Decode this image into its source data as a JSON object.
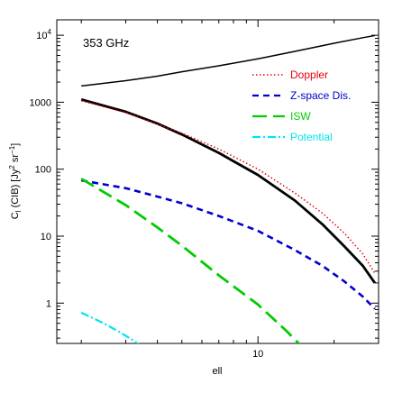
{
  "chart_data": {
    "type": "line",
    "annotation": "353 GHz",
    "xlabel": "ell",
    "ylabel_parts": {
      "main": "C",
      "sub": "l",
      "rest": " (CIB) [Jy",
      "sup": "2",
      "rest2": " sr",
      "sup2": "−1",
      "end": "]"
    },
    "x_scale": "log",
    "y_scale": "log",
    "xlim": [
      1.6,
      30
    ],
    "ylim": [
      0.25,
      17000
    ],
    "x_ticks": [
      {
        "value": 10,
        "label": "10"
      }
    ],
    "y_ticks": [
      {
        "value": 1,
        "label": "1"
      },
      {
        "value": 10,
        "label": "10"
      },
      {
        "value": 100,
        "label": "100"
      },
      {
        "value": 1000,
        "label": "1000"
      },
      {
        "value": 10000,
        "label": "10",
        "sup": "4"
      }
    ],
    "series": [
      {
        "key": "total_upper",
        "color": "#000000",
        "dash": "",
        "width": 1.5,
        "points": [
          [
            2,
            1750
          ],
          [
            3,
            2100
          ],
          [
            4,
            2450
          ],
          [
            5,
            2850
          ],
          [
            7,
            3500
          ],
          [
            10,
            4450
          ],
          [
            14,
            5750
          ],
          [
            20,
            7600
          ],
          [
            26,
            9200
          ],
          [
            29,
            9900
          ]
        ]
      },
      {
        "key": "total",
        "color": "#000000",
        "dash": "",
        "width": 2.8,
        "points": [
          [
            2,
            1100
          ],
          [
            3,
            720
          ],
          [
            4,
            480
          ],
          [
            5,
            330
          ],
          [
            7,
            175
          ],
          [
            10,
            82
          ],
          [
            14,
            34
          ],
          [
            18,
            15
          ],
          [
            22,
            7
          ],
          [
            26,
            3.6
          ],
          [
            29,
            2.0
          ]
        ]
      },
      {
        "key": "doppler",
        "name": "Doppler",
        "color": "#e8000b",
        "dash": "1.5,2.5",
        "width": 1.5,
        "points": [
          [
            2,
            1050
          ],
          [
            3,
            700
          ],
          [
            4,
            470
          ],
          [
            5,
            345
          ],
          [
            7,
            200
          ],
          [
            10,
            100
          ],
          [
            14,
            44
          ],
          [
            18,
            22
          ],
          [
            22,
            11
          ],
          [
            26,
            5.4
          ],
          [
            29,
            2.8
          ]
        ]
      },
      {
        "key": "zspace",
        "name": "Z-space Dis.",
        "color": "#0000cc",
        "dash": "7,5",
        "width": 2.6,
        "points": [
          [
            2,
            68
          ],
          [
            3,
            52
          ],
          [
            4,
            39
          ],
          [
            5,
            31
          ],
          [
            7,
            20
          ],
          [
            10,
            12
          ],
          [
            14,
            6.2
          ],
          [
            18,
            3.6
          ],
          [
            22,
            2.1
          ],
          [
            26,
            1.25
          ],
          [
            29,
            0.82
          ]
        ]
      },
      {
        "key": "isw",
        "name": "ISW",
        "color": "#00cc00",
        "dash": "16,7",
        "width": 2.8,
        "points": [
          [
            2,
            72
          ],
          [
            3,
            29
          ],
          [
            4,
            13.5
          ],
          [
            5,
            7.2
          ],
          [
            7,
            2.6
          ],
          [
            10,
            0.95
          ],
          [
            13,
            0.38
          ],
          [
            15,
            0.22
          ]
        ]
      },
      {
        "key": "potential",
        "name": "Potential",
        "color": "#00e5ee",
        "dash": "9,3,2,3",
        "width": 2.2,
        "points": [
          [
            2,
            0.72
          ],
          [
            2.4,
            0.52
          ],
          [
            2.8,
            0.38
          ],
          [
            3.2,
            0.28
          ],
          [
            3.5,
            0.22
          ]
        ]
      }
    ],
    "legend": {
      "placement": "top-right",
      "entries": [
        "doppler",
        "zspace",
        "isw",
        "potential"
      ]
    }
  }
}
